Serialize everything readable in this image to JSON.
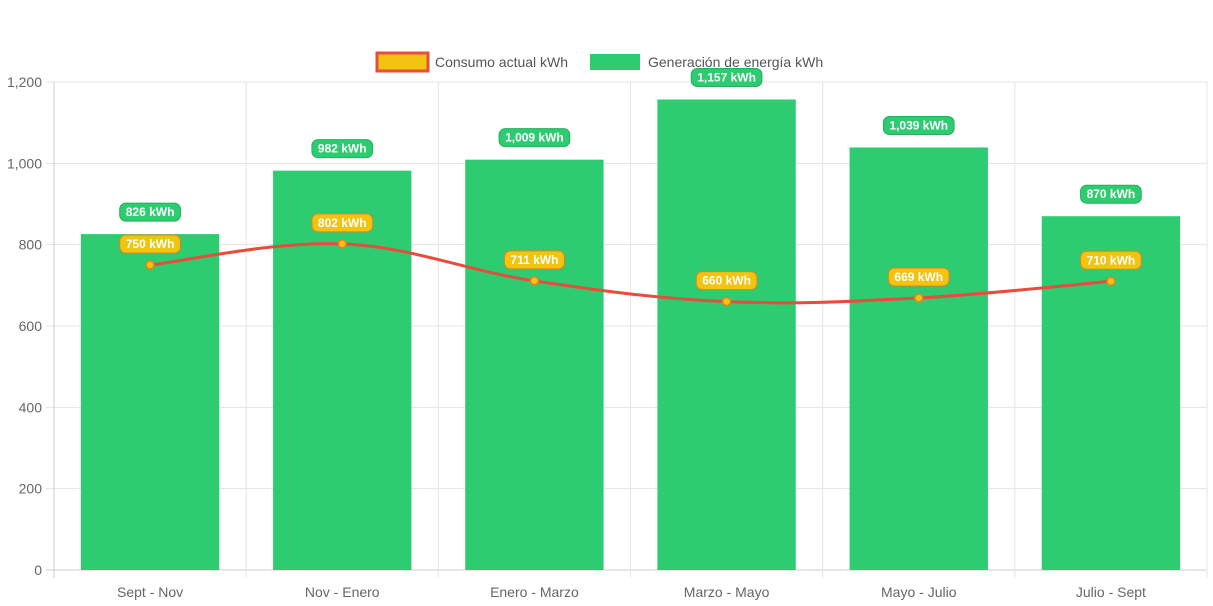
{
  "chart_data": {
    "type": "bar",
    "categories": [
      "Sept - Nov",
      "Nov - Enero",
      "Enero - Marzo",
      "Marzo - Mayo",
      "Mayo - Julio",
      "Julio - Sept"
    ],
    "series": [
      {
        "name": "Consumo actual kWh",
        "type": "line",
        "values": [
          750,
          802,
          711,
          660,
          669,
          710
        ],
        "labels": [
          "750 kWh",
          "802 kWh",
          "711 kWh",
          "660 kWh",
          "669 kWh",
          "710 kWh"
        ],
        "color": "#e74c3c",
        "fill": "#f1c40f"
      },
      {
        "name": "Generación de energía kWh",
        "type": "bar",
        "values": [
          826,
          982,
          1009,
          1157,
          1039,
          870
        ],
        "labels": [
          "826 kWh",
          "982 kWh",
          "1,009 kWh",
          "1,157 kWh",
          "1,039 kWh",
          "870 kWh"
        ],
        "color": "#2ecc71"
      }
    ],
    "y_ticks": [
      "0",
      "200",
      "400",
      "600",
      "800",
      "1,000",
      "1,200"
    ],
    "ylim": [
      0,
      1200
    ],
    "grid": true,
    "legend_position": "top"
  }
}
